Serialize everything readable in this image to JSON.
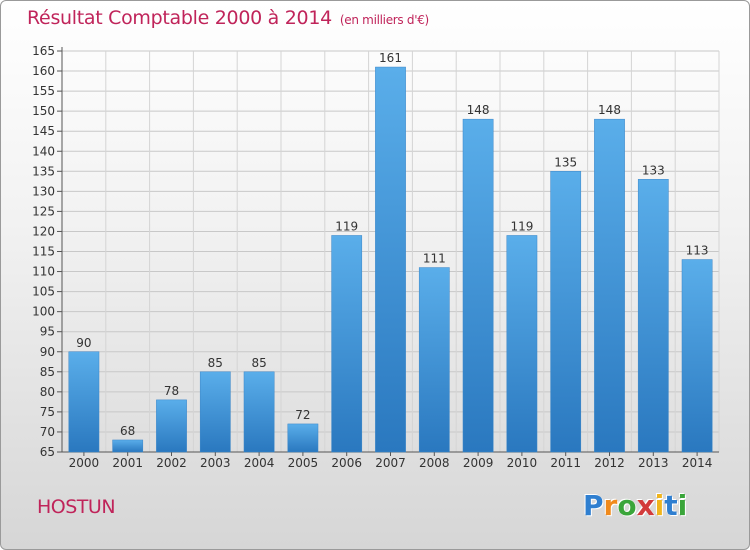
{
  "title": "Résultat Comptable 2000 à 2014",
  "subtitle": "(en milliers d'€)",
  "location_label": "HOSTUN",
  "brand": {
    "letters": [
      "P",
      "r",
      "o",
      "x",
      "i",
      "t",
      "i"
    ],
    "colors": [
      "#2f7fd0",
      "#f08a1c",
      "#3aa53a",
      "#d23a3a",
      "#f0b41c",
      "#2f7fd0",
      "#3aa53a"
    ]
  },
  "colors": {
    "bar_light": "#5aaeea",
    "bar_dark": "#2a78bf",
    "title": "#c0245a"
  },
  "chart_data": {
    "type": "bar",
    "title": "Résultat Comptable 2000 à 2014",
    "subtitle": "(en milliers d'€)",
    "xlabel": "",
    "ylabel": "",
    "categories": [
      "2000",
      "2001",
      "2002",
      "2003",
      "2004",
      "2005",
      "2006",
      "2007",
      "2008",
      "2009",
      "2010",
      "2011",
      "2012",
      "2013",
      "2014"
    ],
    "values": [
      90,
      68,
      78,
      85,
      85,
      72,
      119,
      161,
      111,
      148,
      119,
      135,
      148,
      133,
      113
    ],
    "ylim": [
      65,
      165
    ],
    "yticks": [
      65,
      70,
      75,
      80,
      85,
      90,
      95,
      100,
      105,
      110,
      115,
      120,
      125,
      130,
      135,
      140,
      145,
      150,
      155,
      160,
      165
    ],
    "grid": true,
    "data_labels": true
  }
}
